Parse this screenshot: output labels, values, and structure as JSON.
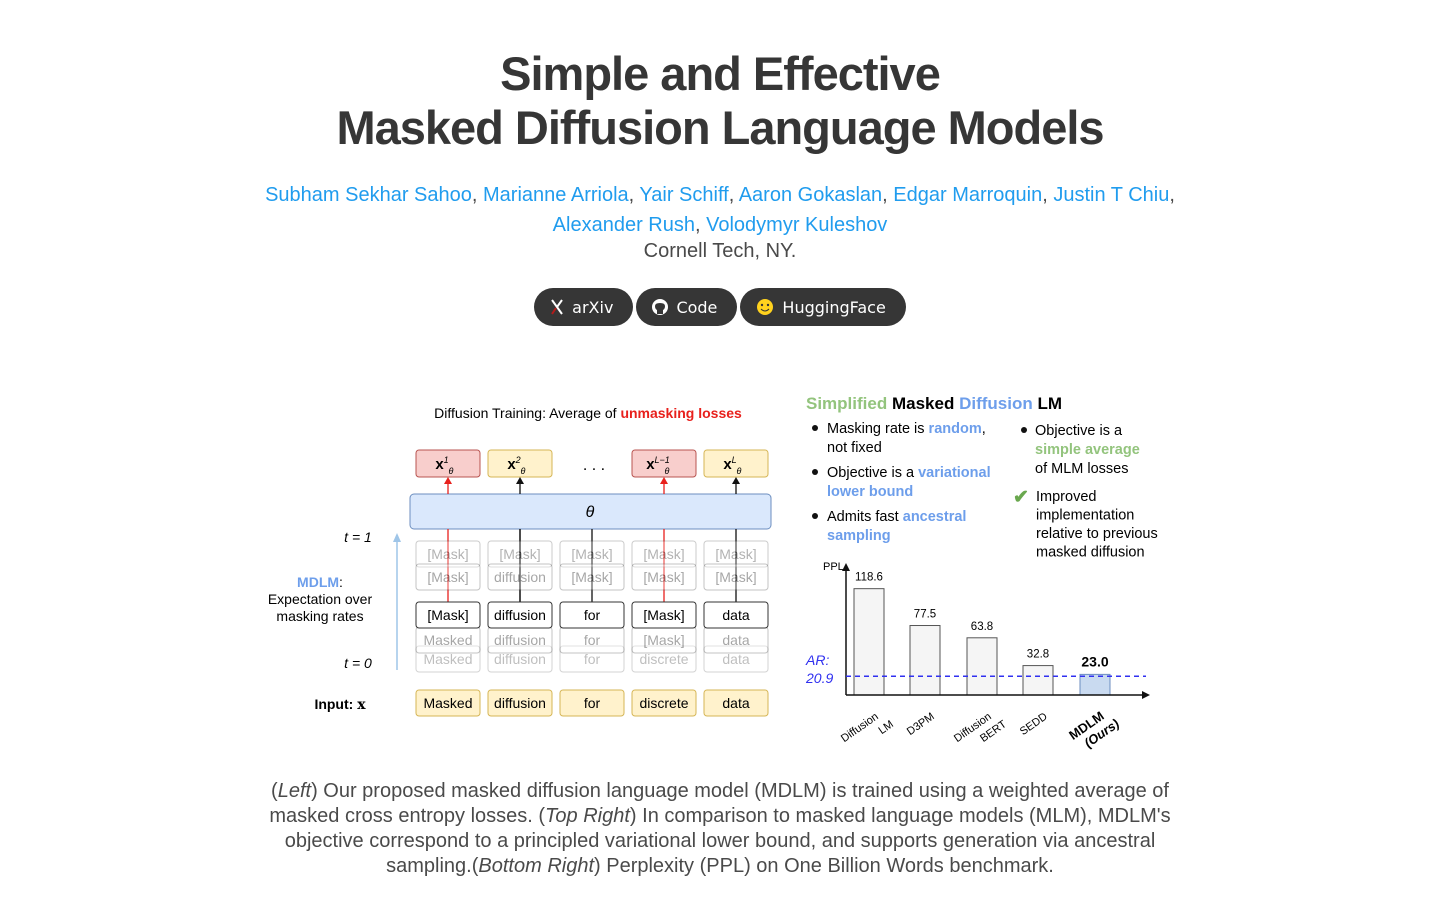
{
  "header": {
    "title_lines": [
      "Simple and Effective",
      "Masked Diffusion Language Models"
    ],
    "authors": [
      "Subham Sekhar Sahoo",
      "Marianne Arriola",
      "Yair Schiff",
      "Aaron Gokaslan",
      "Edgar Marroquin",
      "Justin T Chiu",
      "Alexander Rush",
      "Volodymyr Kuleshov"
    ],
    "affiliation": "Cornell Tech, NY."
  },
  "buttons": [
    "arXiv",
    "Code",
    "HuggingFace"
  ],
  "figure": {
    "left": {
      "title": [
        {
          "text": "Diffusion Training: Average of "
        },
        {
          "text": "unmasking losses",
          "color": "#e8201c"
        }
      ],
      "outputs": [
        {
          "base": "x",
          "sub": "θ",
          "sup": "1",
          "color": "red"
        },
        {
          "base": "x",
          "sub": "θ",
          "sup": "2",
          "color": "yellow"
        },
        null,
        {
          "base": "x",
          "sub": "θ",
          "sup": "L−1",
          "color": "red"
        },
        {
          "base": "x",
          "sub": "θ",
          "sup": "L",
          "color": "yellow"
        }
      ],
      "dots": ". . .",
      "theta": "θ",
      "t_top": "t = 1",
      "t_bottom": "t = 0",
      "mdlm_label": [
        {
          "text": "MDLM",
          "color": "#6d9eeb"
        },
        {
          "text": ":"
        }
      ],
      "mdlm_lines": [
        "Expectation over",
        "masking rates"
      ],
      "input_label": "Input: ",
      "input_var": "x",
      "faded_rows_above": [
        [
          "[Mask]",
          "[Mask]",
          "[Mask]",
          "[Mask]",
          "[Mask]"
        ],
        [
          "[Mask]",
          "diffusion",
          "[Mask]",
          "[Mask]",
          "[Mask]"
        ]
      ],
      "current_row": [
        "[Mask]",
        "diffusion",
        "for",
        "[Mask]",
        "data"
      ],
      "faded_rows_below": [
        [
          "Masked",
          "diffusion",
          "for",
          "[Mask]",
          "data"
        ],
        [
          "Masked",
          "diffusion",
          "for",
          "discrete",
          "data"
        ]
      ],
      "input_row": [
        "Masked",
        "diffusion",
        "for",
        "discrete",
        "data"
      ]
    },
    "right": {
      "heading": [
        {
          "text": "Simplified ",
          "color": "#93c47d"
        },
        {
          "text": "Masked "
        },
        {
          "text": "Diffusion ",
          "color": "#6d9eeb"
        },
        {
          "text": "LM"
        }
      ],
      "bullets_left": [
        [
          [
            {
              "text": "Masking rate is "
            },
            {
              "text": "random",
              "color": "#6d9eeb"
            },
            {
              "text": ","
            }
          ],
          [
            {
              "text": "not fixed"
            }
          ]
        ],
        [
          [
            {
              "text": "Objective is a "
            },
            {
              "text": "variational",
              "color": "#6d9eeb"
            }
          ],
          [
            {
              "text": "lower bound",
              "color": "#6d9eeb"
            }
          ]
        ],
        [
          [
            {
              "text": "Admits fast "
            },
            {
              "text": "ancestral",
              "color": "#6d9eeb"
            }
          ],
          [
            {
              "text": "sampling",
              "color": "#6d9eeb"
            }
          ]
        ]
      ],
      "bullets_right": [
        [
          [
            {
              "text": "Objective is a"
            }
          ],
          [
            {
              "text": "simple average",
              "color": "#93c47d"
            }
          ],
          [
            {
              "text": "of MLM losses"
            }
          ]
        ]
      ],
      "check_note": [
        "Improved",
        "implementation",
        "relative to previous",
        "masked diffusion"
      ],
      "ppl_chart": {
        "y_label": "PPL",
        "categories": [
          [
            "Diffusion",
            "LM"
          ],
          [
            "D3PM"
          ],
          [
            "Diffusion",
            "BERT"
          ],
          [
            "SEDD"
          ],
          [
            "MDLM",
            "(Ours)"
          ]
        ],
        "values": [
          118.6,
          77.5,
          63.8,
          32.8,
          23.0
        ],
        "value_labels": [
          "118.6",
          "77.5",
          "63.8",
          "32.8",
          "23.0"
        ],
        "colors": [
          "#f5f5f5",
          "#f5f5f5",
          "#f5f5f5",
          "#f5f5f5",
          "#c9daf0"
        ],
        "ylim": [
          0,
          145
        ],
        "baseline": {
          "name": "AR:",
          "value": 20.9,
          "color": "#3030f0"
        }
      }
    }
  },
  "caption": [
    {
      "text": "("
    },
    {
      "text": "Left",
      "italic": true
    },
    {
      "text": ") Our proposed masked diffusion language model (MDLM) is trained using a weighted average of masked cross entropy losses. ("
    },
    {
      "text": "Top Right",
      "italic": true
    },
    {
      "text": ") In comparison to masked language models (MLM), MDLM's objective correspond to a principled variational lower bound, and supports generation via ancestral sampling.("
    },
    {
      "text": "Bottom Right",
      "italic": true
    },
    {
      "text": ") Perplexity (PPL) on One Billion Words benchmark."
    }
  ]
}
